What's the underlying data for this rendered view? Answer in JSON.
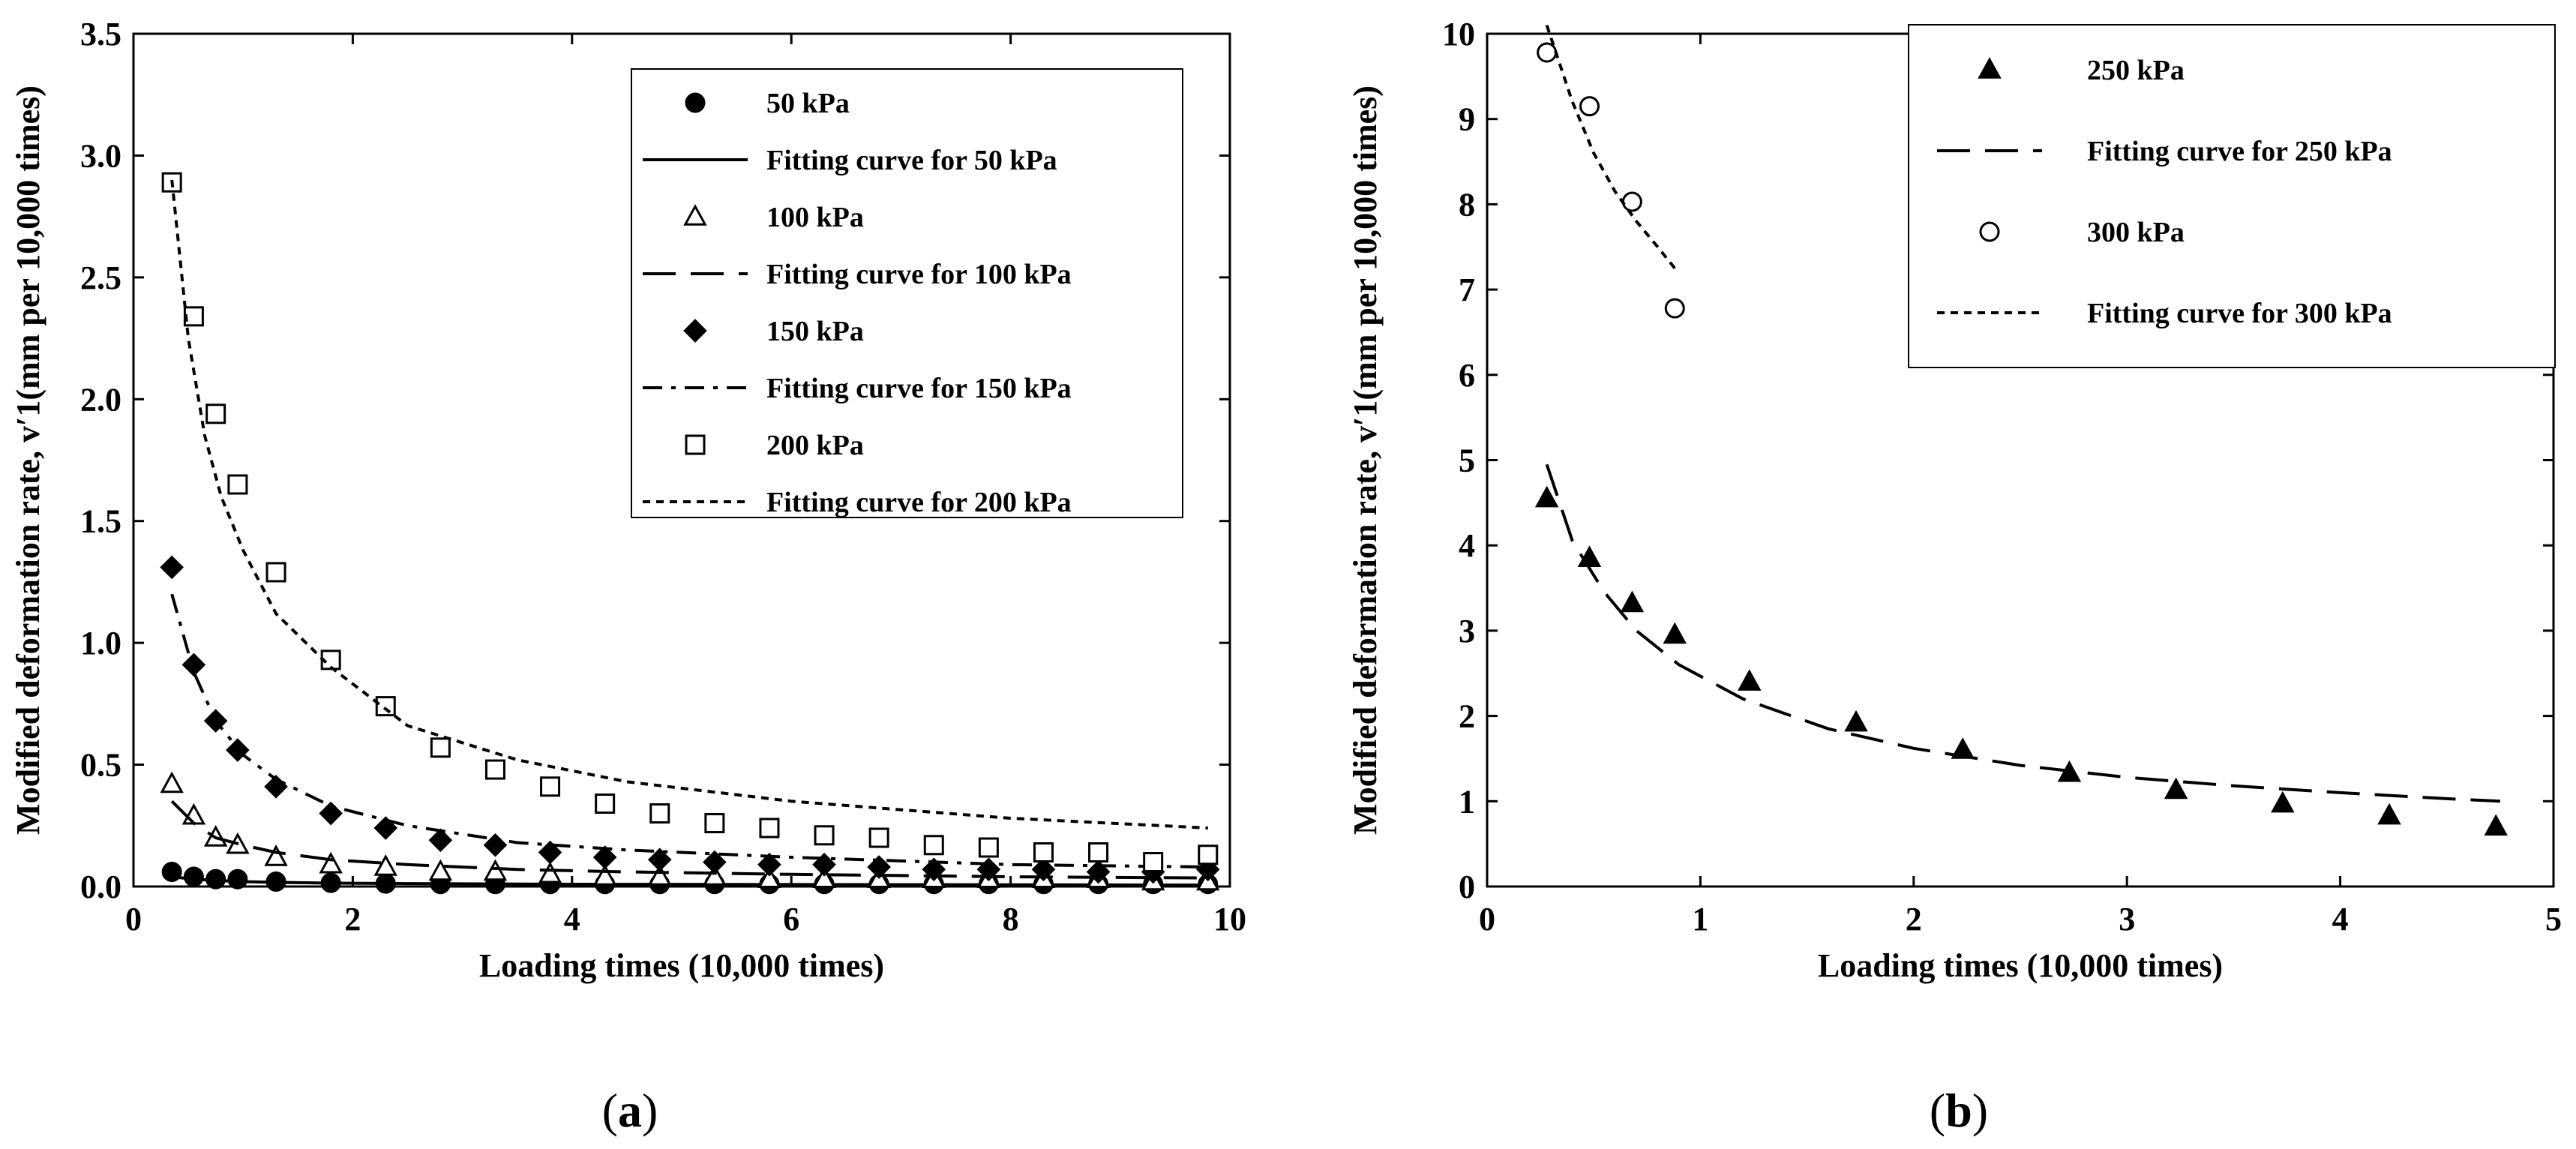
{
  "chart_data": [
    {
      "type": "scatter",
      "panel_label": "a",
      "xlabel": "Loading times (10,000 times)",
      "ylabel": "Modified deformation rate, v′1(mm per 10,000 times)",
      "xlim": [
        0,
        10
      ],
      "ylim": [
        0,
        3.5
      ],
      "xticks": [
        "0",
        "2",
        "4",
        "6",
        "8",
        "10"
      ],
      "yticks": [
        "0.0",
        "0.5",
        "1.0",
        "1.5",
        "2.0",
        "2.5",
        "3.0",
        "3.5"
      ],
      "legend_position": "top-right",
      "series": [
        {
          "name": "50 kPa",
          "kind": "points",
          "marker": "circle-filled",
          "x": [
            0.35,
            0.55,
            0.75,
            0.95,
            1.3,
            1.8,
            2.3,
            2.8,
            3.3,
            3.8,
            4.3,
            4.8,
            5.3,
            5.8,
            6.3,
            6.8,
            7.3,
            7.8,
            8.3,
            8.8,
            9.3,
            9.8
          ],
          "y": [
            0.06,
            0.04,
            0.03,
            0.03,
            0.02,
            0.015,
            0.012,
            0.01,
            0.01,
            0.01,
            0.01,
            0.01,
            0.01,
            0.01,
            0.01,
            0.01,
            0.01,
            0.01,
            0.01,
            0.01,
            0.01,
            0.01
          ]
        },
        {
          "name": "Fitting curve for 50 kPa",
          "kind": "line",
          "dash": "solid",
          "x": [
            0.35,
            0.55,
            0.75,
            1.0,
            1.3,
            1.8,
            2.5,
            3.5,
            4.5,
            6,
            8,
            9.8
          ],
          "y": [
            0.04,
            0.03,
            0.025,
            0.02,
            0.017,
            0.014,
            0.012,
            0.01,
            0.009,
            0.008,
            0.007,
            0.006
          ]
        },
        {
          "name": "100 kPa",
          "kind": "points",
          "marker": "triangle-open",
          "x": [
            0.35,
            0.55,
            0.75,
            0.95,
            1.3,
            1.8,
            2.3,
            2.8,
            3.3,
            3.8,
            4.3,
            4.8,
            5.3,
            5.8,
            6.3,
            6.8,
            7.3,
            7.8,
            8.3,
            8.8,
            9.3,
            9.8
          ],
          "y": [
            0.42,
            0.29,
            0.2,
            0.17,
            0.12,
            0.09,
            0.08,
            0.06,
            0.06,
            0.05,
            0.04,
            0.04,
            0.04,
            0.03,
            0.03,
            0.03,
            0.03,
            0.03,
            0.03,
            0.03,
            0.02,
            0.02
          ]
        },
        {
          "name": "Fitting curve for 100 kPa",
          "kind": "line",
          "dash": "long-dash",
          "x": [
            0.35,
            0.55,
            0.75,
            1.0,
            1.3,
            1.8,
            2.5,
            3.5,
            4.5,
            6,
            8,
            9.8
          ],
          "y": [
            0.35,
            0.26,
            0.2,
            0.17,
            0.14,
            0.11,
            0.09,
            0.07,
            0.06,
            0.05,
            0.04,
            0.035
          ]
        },
        {
          "name": "150 kPa",
          "kind": "points",
          "marker": "diamond-filled",
          "x": [
            0.35,
            0.55,
            0.75,
            0.95,
            1.3,
            1.8,
            2.3,
            2.8,
            3.3,
            3.8,
            4.3,
            4.8,
            5.3,
            5.8,
            6.3,
            6.8,
            7.3,
            7.8,
            8.3,
            8.8,
            9.3,
            9.8
          ],
          "y": [
            1.31,
            0.91,
            0.68,
            0.56,
            0.41,
            0.3,
            0.24,
            0.19,
            0.17,
            0.14,
            0.12,
            0.11,
            0.1,
            0.09,
            0.09,
            0.08,
            0.07,
            0.07,
            0.07,
            0.06,
            0.06,
            0.07
          ]
        },
        {
          "name": "Fitting curve for 150 kPa",
          "kind": "line",
          "dash": "dash-dot",
          "x": [
            0.35,
            0.55,
            0.75,
            1.0,
            1.3,
            1.8,
            2.5,
            3.5,
            4.5,
            6,
            8,
            9.8
          ],
          "y": [
            1.2,
            0.88,
            0.68,
            0.54,
            0.44,
            0.33,
            0.25,
            0.18,
            0.15,
            0.12,
            0.09,
            0.08
          ]
        },
        {
          "name": "200 kPa",
          "kind": "points",
          "marker": "square-open",
          "x": [
            0.35,
            0.55,
            0.75,
            0.95,
            1.3,
            1.8,
            2.3,
            2.8,
            3.3,
            3.8,
            4.3,
            4.8,
            5.3,
            5.8,
            6.3,
            6.8,
            7.3,
            7.8,
            8.3,
            8.8,
            9.3,
            9.8
          ],
          "y": [
            2.89,
            2.34,
            1.94,
            1.65,
            1.29,
            0.93,
            0.74,
            0.57,
            0.48,
            0.41,
            0.34,
            0.3,
            0.26,
            0.24,
            0.21,
            0.2,
            0.17,
            0.16,
            0.14,
            0.14,
            0.1,
            0.13
          ]
        },
        {
          "name": "Fitting curve for 200 kPa",
          "kind": "line",
          "dash": "short-dash",
          "x": [
            0.35,
            0.5,
            0.65,
            0.8,
            1.0,
            1.3,
            1.8,
            2.5,
            3.5,
            4.5,
            6,
            8,
            9.8
          ],
          "y": [
            2.9,
            2.25,
            1.85,
            1.6,
            1.38,
            1.12,
            0.9,
            0.66,
            0.52,
            0.43,
            0.35,
            0.28,
            0.24
          ]
        }
      ]
    },
    {
      "type": "scatter",
      "panel_label": "b",
      "xlabel": "Loading times (10,000 times)",
      "ylabel": "Modified deformation rate, v′1(mm per 10,000 times)",
      "xlim": [
        0,
        5
      ],
      "ylim": [
        0,
        10
      ],
      "xticks": [
        "0",
        "1",
        "2",
        "3",
        "4",
        "5"
      ],
      "yticks": [
        "0",
        "1",
        "2",
        "3",
        "4",
        "5",
        "6",
        "7",
        "8",
        "9",
        "10"
      ],
      "legend_position": "top-right",
      "series": [
        {
          "name": "250 kPa",
          "kind": "points",
          "marker": "triangle-filled",
          "x": [
            0.28,
            0.48,
            0.68,
            0.88,
            1.23,
            1.73,
            2.23,
            2.73,
            3.23,
            3.73,
            4.23,
            4.73
          ],
          "y": [
            4.55,
            3.85,
            3.32,
            2.95,
            2.4,
            1.92,
            1.6,
            1.33,
            1.13,
            0.97,
            0.83,
            0.7
          ]
        },
        {
          "name": "Fitting curve for 250 kPa",
          "kind": "line",
          "dash": "long-dash",
          "x": [
            0.28,
            0.4,
            0.55,
            0.7,
            0.9,
            1.2,
            1.6,
            2.0,
            2.5,
            3.0,
            3.5,
            4.0,
            4.5,
            4.75
          ],
          "y": [
            4.95,
            4.05,
            3.45,
            3.0,
            2.6,
            2.2,
            1.85,
            1.62,
            1.42,
            1.28,
            1.18,
            1.1,
            1.03,
            1.0
          ]
        },
        {
          "name": "300 kPa",
          "kind": "points",
          "marker": "circle-open",
          "x": [
            0.28,
            0.48,
            0.68,
            0.88
          ],
          "y": [
            9.78,
            9.15,
            8.03,
            6.78
          ]
        },
        {
          "name": "Fitting curve for 300 kPa",
          "kind": "line",
          "dash": "short-dash",
          "x": [
            0.28,
            0.4,
            0.5,
            0.6,
            0.7,
            0.8,
            0.88
          ],
          "y": [
            10.1,
            9.2,
            8.6,
            8.15,
            7.8,
            7.5,
            7.25
          ]
        }
      ]
    }
  ]
}
